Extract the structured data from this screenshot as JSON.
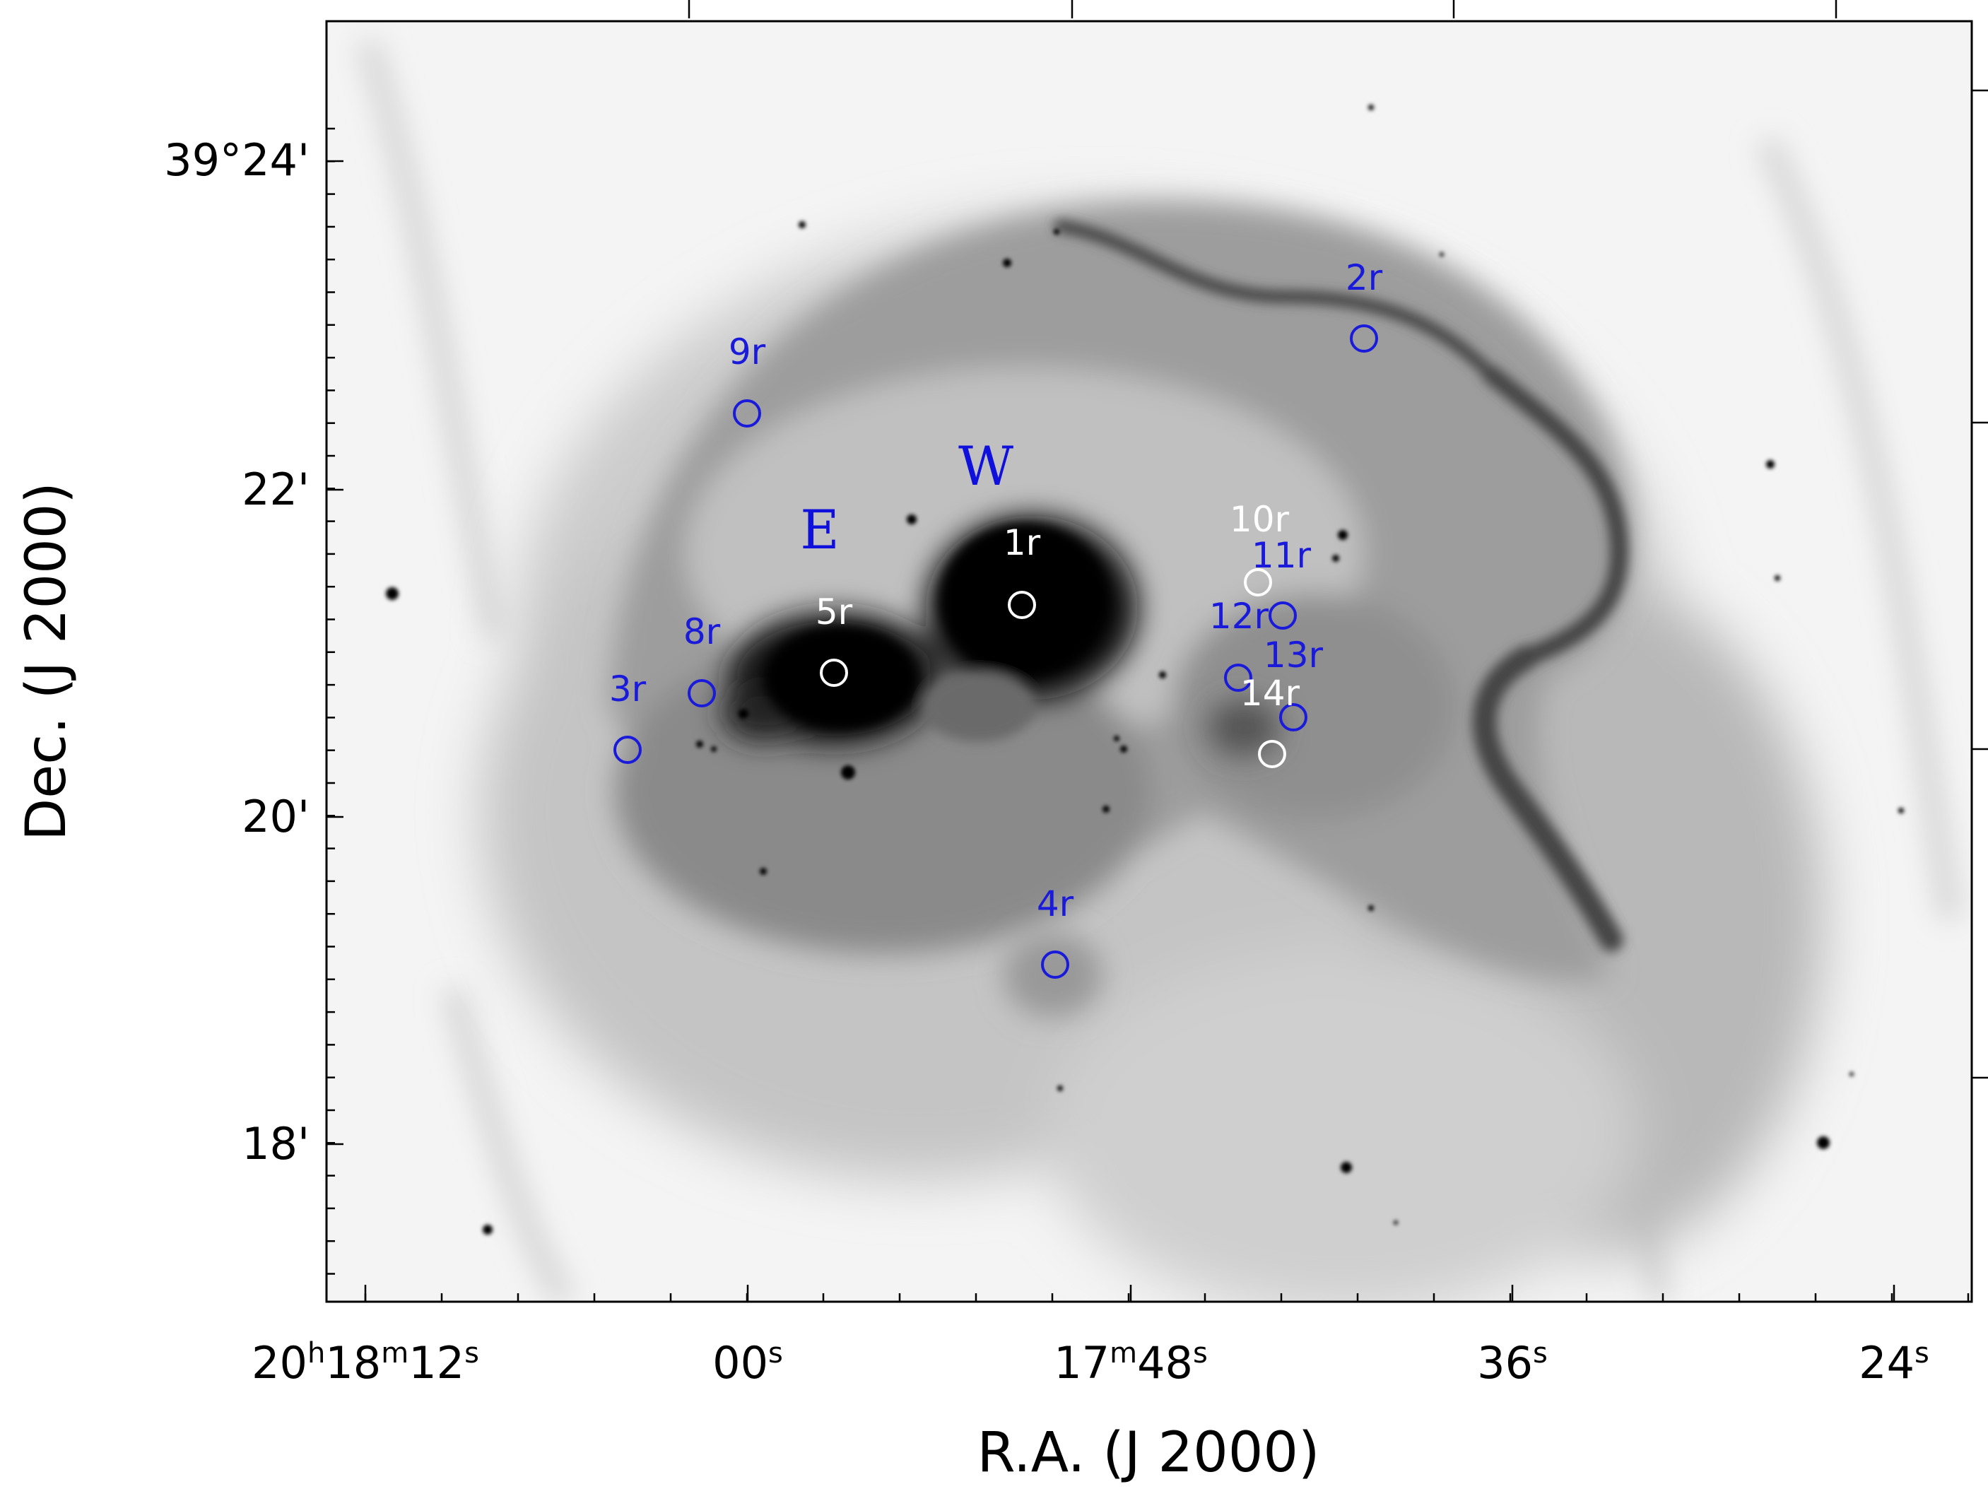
{
  "figure": {
    "x_axis_label": "R.A. (J 2000)",
    "y_axis_label": "Dec. (J 2000)",
    "x_ticks": [
      {
        "parts": [
          [
            "20",
            ""
          ],
          [
            "h",
            "sup"
          ],
          [
            "18",
            ""
          ],
          [
            "m",
            "sup"
          ],
          [
            "12",
            ""
          ],
          [
            "s",
            "sup"
          ]
        ]
      },
      {
        "parts": [
          [
            "00",
            ""
          ],
          [
            "s",
            "sup"
          ]
        ]
      },
      {
        "parts": [
          [
            "17",
            ""
          ],
          [
            "m",
            "sup"
          ],
          [
            "48",
            ""
          ],
          [
            "s",
            "sup"
          ]
        ]
      },
      {
        "parts": [
          [
            "36",
            ""
          ],
          [
            "s",
            "sup"
          ]
        ]
      },
      {
        "parts": [
          [
            "24",
            ""
          ],
          [
            "s",
            "sup"
          ]
        ]
      }
    ],
    "y_ticks": [
      "39°24'",
      "22'",
      "20'",
      "18'"
    ],
    "region_labels": [
      {
        "text": "E",
        "color": "#1010dd"
      },
      {
        "text": "W",
        "color": "#1010dd"
      }
    ],
    "sources": [
      {
        "label": "1r",
        "color": "#ffffff"
      },
      {
        "label": "2r",
        "color": "#1a1adb"
      },
      {
        "label": "3r",
        "color": "#1a1adb"
      },
      {
        "label": "4r",
        "color": "#1a1adb"
      },
      {
        "label": "5r",
        "color": "#ffffff"
      },
      {
        "label": "8r",
        "color": "#1a1adb"
      },
      {
        "label": "9r",
        "color": "#1a1adb"
      },
      {
        "label": "10r",
        "color": "#ffffff"
      },
      {
        "label": "11r",
        "color": "#1a1adb"
      },
      {
        "label": "12r",
        "color": "#1a1adb"
      },
      {
        "label": "13r",
        "color": "#1a1adb"
      },
      {
        "label": "14r",
        "color": "#ffffff"
      }
    ]
  }
}
